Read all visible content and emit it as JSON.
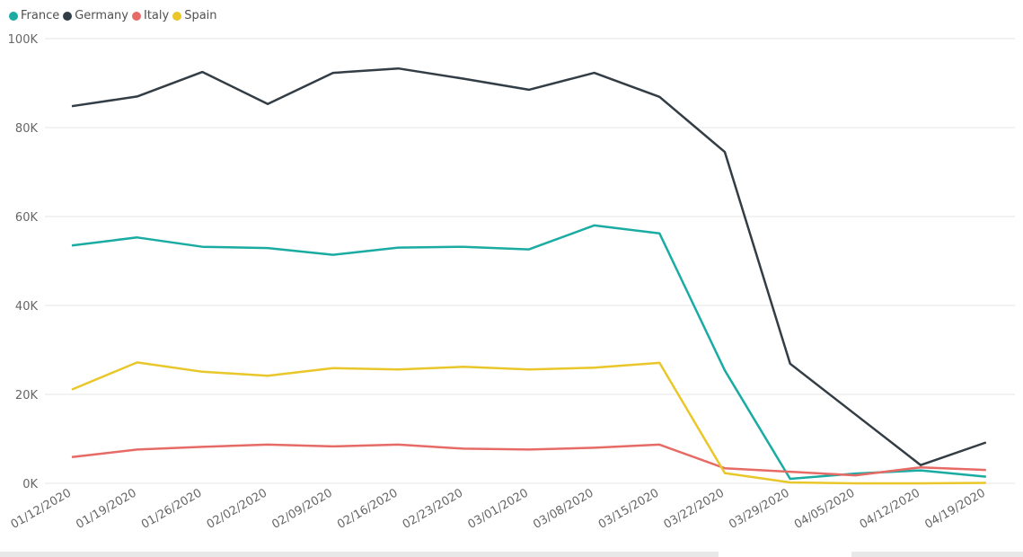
{
  "chart_data": {
    "type": "line",
    "title": "",
    "xlabel": "",
    "ylabel": "",
    "ylim": [
      0,
      100000
    ],
    "yticks": [
      0,
      20000,
      40000,
      60000,
      80000,
      100000
    ],
    "ytick_labels": [
      "0K",
      "20K",
      "40K",
      "60K",
      "80K",
      "100K"
    ],
    "grid": true,
    "legend_position": "top-left",
    "categories": [
      "01/12/2020",
      "01/19/2020",
      "01/26/2020",
      "02/02/2020",
      "02/09/2020",
      "02/16/2020",
      "02/23/2020",
      "03/01/2020",
      "03/08/2020",
      "03/15/2020",
      "03/22/2020",
      "03/29/2020",
      "04/05/2020",
      "04/12/2020",
      "04/19/2020"
    ],
    "series": [
      {
        "name": "France",
        "color": "#1aaba3",
        "values": [
          53500,
          55300,
          53200,
          52900,
          51400,
          53000,
          53200,
          52600,
          58000,
          56200,
          25400,
          1000,
          2200,
          2900,
          1500
        ]
      },
      {
        "name": "Germany",
        "color": "#333d45",
        "values": [
          84800,
          87000,
          92500,
          85300,
          92300,
          93300,
          91000,
          88500,
          92300,
          86900,
          74500,
          26900,
          15500,
          4100,
          9200
        ]
      },
      {
        "name": "Italy",
        "color": "#e66b66",
        "values": [
          5900,
          7600,
          8200,
          8700,
          8300,
          8700,
          7800,
          7600,
          8000,
          8700,
          3400,
          2600,
          1800,
          3600,
          3000
        ]
      },
      {
        "name": "Spain",
        "color": "#e9c72a",
        "values": [
          21100,
          27200,
          25100,
          24200,
          25900,
          25600,
          26200,
          25600,
          26000,
          27100,
          2300,
          200,
          0,
          0,
          100
        ]
      }
    ]
  }
}
